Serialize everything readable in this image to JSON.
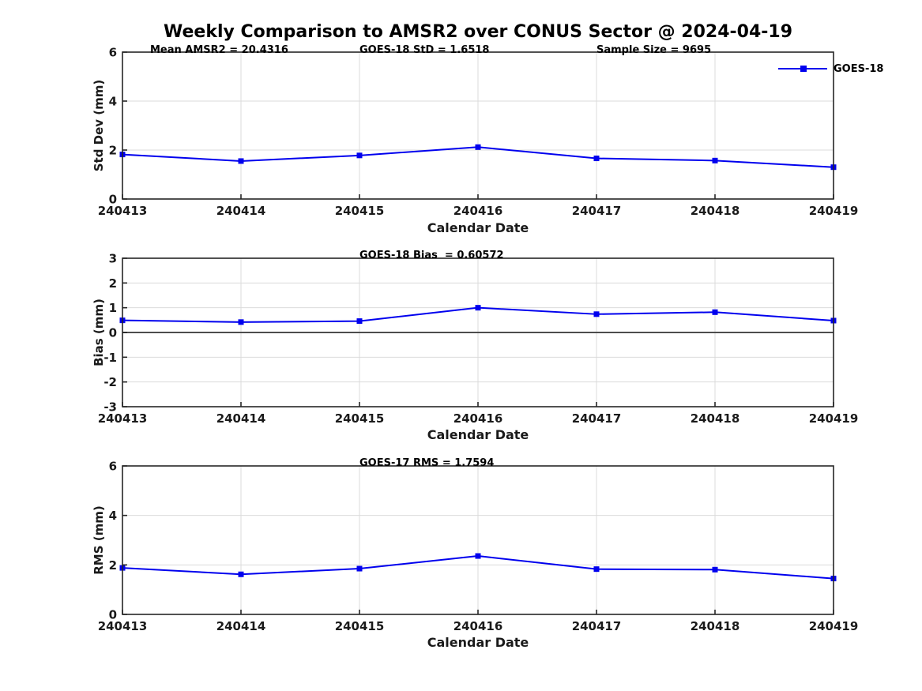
{
  "title": "Weekly Comparison to AMSR2 over CONUS Sector @ 2024-04-19",
  "colors": {
    "line": "#0000EE",
    "axis": "#262626",
    "grid": "#DBDBDB",
    "zero_line": "#4D4D4D",
    "tick_text": "#1a1a1a"
  },
  "chart_data": [
    {
      "type": "line",
      "categories": [
        "240413",
        "240414",
        "240415",
        "240416",
        "240417",
        "240418",
        "240419"
      ],
      "series": [
        {
          "name": "GOES-18",
          "values": [
            1.82,
            1.55,
            1.78,
            2.12,
            1.66,
            1.57,
            1.3
          ]
        }
      ],
      "ylabel": "Std Dev (mm)",
      "xlabel": "Calendar Date",
      "ylim": [
        0,
        6
      ],
      "yticks": [
        0,
        2,
        4,
        6
      ],
      "grid": true,
      "zero_line": false,
      "legend": {
        "visible": true,
        "label": "GOES-18",
        "position": "northeast"
      },
      "annotations": [
        "Mean AMSR2 = 20.4316",
        "GOES-18 StD = 1.6518",
        "Sample Size = 9695"
      ]
    },
    {
      "type": "line",
      "categories": [
        "240413",
        "240414",
        "240415",
        "240416",
        "240417",
        "240418",
        "240419"
      ],
      "series": [
        {
          "name": "GOES-18",
          "values": [
            0.49,
            0.42,
            0.46,
            1.0,
            0.74,
            0.82,
            0.48
          ]
        }
      ],
      "ylabel": "Bias (mm)",
      "xlabel": "Calendar Date",
      "ylim": [
        -3,
        3
      ],
      "yticks": [
        -3,
        -2,
        -1,
        0,
        1,
        2,
        3
      ],
      "grid": true,
      "zero_line": true,
      "legend": {
        "visible": false
      },
      "annotations": [
        "GOES-18 Bias  = 0.60572"
      ]
    },
    {
      "type": "line",
      "categories": [
        "240413",
        "240414",
        "240415",
        "240416",
        "240417",
        "240418",
        "240419"
      ],
      "series": [
        {
          "name": "GOES-18",
          "values": [
            1.88,
            1.62,
            1.85,
            2.36,
            1.83,
            1.81,
            1.45
          ]
        }
      ],
      "ylabel": "RMS (mm)",
      "xlabel": "Calendar Date",
      "ylim": [
        0,
        6
      ],
      "yticks": [
        0,
        2,
        4,
        6
      ],
      "grid": true,
      "zero_line": false,
      "legend": {
        "visible": false
      },
      "annotations": [
        "GOES-17 RMS = 1.7594"
      ]
    }
  ]
}
